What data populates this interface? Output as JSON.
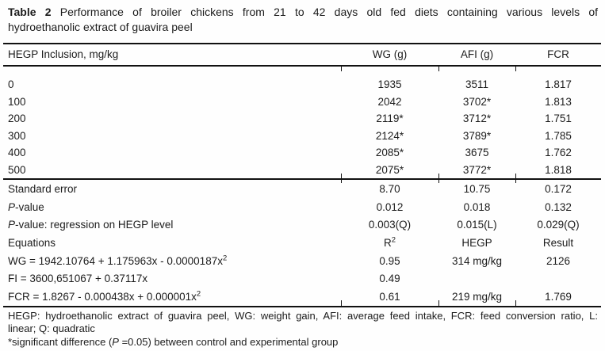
{
  "title": {
    "label": "Table 2",
    "line1_rest": "Performance of broiler chickens from 21 to 42 days old fed diets containing various levels of",
    "line2": "hydroethanolic extract of guavira peel"
  },
  "header": {
    "col0": "HEGP Inclusion, mg/kg",
    "col1": "WG (g)",
    "col2": "AFI (g)",
    "col3": "FCR"
  },
  "data_rows": [
    {
      "level": "0",
      "wg": "1935",
      "afi": "3511",
      "fcr": "1.817"
    },
    {
      "level": "100",
      "wg": "2042",
      "afi": "3702*",
      "fcr": "1.813"
    },
    {
      "level": "200",
      "wg": "2119*",
      "afi": "3712*",
      "fcr": "1.751"
    },
    {
      "level": "300",
      "wg": "2124*",
      "afi": "3789*",
      "fcr": "1.785"
    },
    {
      "level": "400",
      "wg": "2085*",
      "afi": "3675",
      "fcr": "1.762"
    },
    {
      "level": "500",
      "wg": "2075*",
      "afi": "3772*",
      "fcr": "1.818"
    }
  ],
  "stats_rows": [
    {
      "label_i": "",
      "label": "Standard error",
      "wg": "8.70",
      "afi": "10.75",
      "fcr": "0.172"
    },
    {
      "label_i": "P",
      "label": "-value",
      "wg": "0.012",
      "afi": "0.018",
      "fcr": "0.132"
    },
    {
      "label_i": "P",
      "label": "-value: regression on HEGP level",
      "wg": "0.003(Q)",
      "afi": "0.015(L)",
      "fcr": "0.029(Q)"
    }
  ],
  "equations_header": {
    "label": "Equations",
    "r2_base": "R",
    "r2_sup": "2",
    "col2": "HEGP",
    "col3": "Result"
  },
  "equation_rows": [
    {
      "text": "WG = 1942.10764 + 1.175963x - 0.0000187x",
      "sup": "2",
      "r2": "0.95",
      "hegp": "314 mg/kg",
      "result": "2126"
    },
    {
      "text": "FI = 3600,651067 + 0.37117x",
      "sup": "",
      "r2": "0.49",
      "hegp": "",
      "result": ""
    },
    {
      "text": "FCR = 1.8267 - 0.000438x + 0.000001x",
      "sup": "2",
      "r2": "0.61",
      "hegp": "219 mg/kg",
      "result": "1.769"
    }
  ],
  "footnotes": {
    "line1": "HEGP: hydroethanolic extract of guavira peel, WG: weight gain, AFI: average feed intake, FCR: feed conversion ratio, L:",
    "line2": "linear; Q: quadratic",
    "sig_pre": "*significant difference (",
    "sig_italic": "P",
    "sig_post": " =0.05) between control and experimental group"
  }
}
